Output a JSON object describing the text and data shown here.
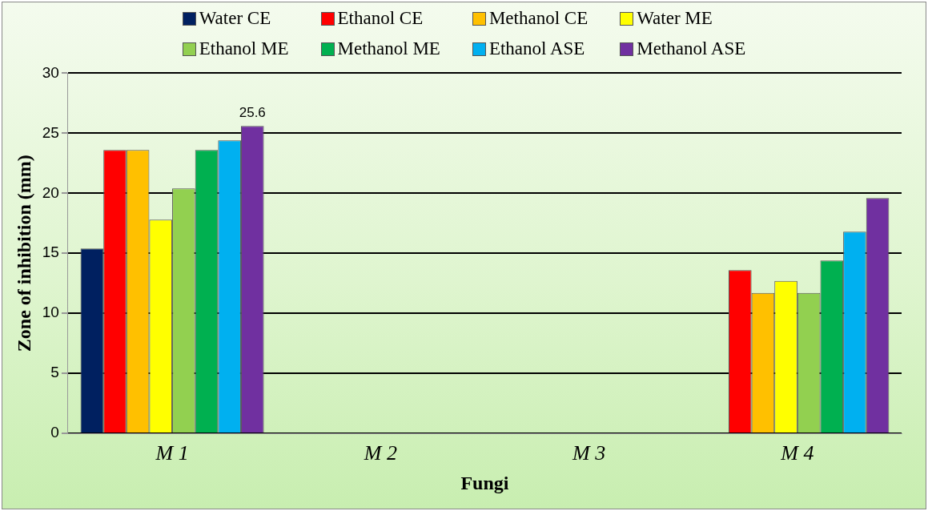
{
  "chart_data": {
    "type": "bar",
    "xlabel": "Fungi",
    "ylabel": "Zone of inhibition (mm)",
    "categories": [
      "M 1",
      "M 2",
      "M 3",
      "M 4"
    ],
    "series": [
      {
        "name": "Water CE",
        "color": "#002060",
        "values": [
          15.4,
          0,
          0,
          0
        ]
      },
      {
        "name": "Ethanol CE",
        "color": "#ff0000",
        "values": [
          23.6,
          0,
          0,
          13.6
        ]
      },
      {
        "name": "Methanol CE",
        "color": "#ffc000",
        "values": [
          23.6,
          0,
          0,
          11.7
        ]
      },
      {
        "name": "Water ME",
        "color": "#ffff00",
        "values": [
          17.8,
          0,
          0,
          12.7
        ]
      },
      {
        "name": "Ethanol ME",
        "color": "#92d050",
        "values": [
          20.4,
          0,
          0,
          11.7
        ]
      },
      {
        "name": "Methanol ME",
        "color": "#00b050",
        "values": [
          23.6,
          0,
          0,
          14.4
        ]
      },
      {
        "name": "Ethanol ASE",
        "color": "#00b0f0",
        "values": [
          24.4,
          0,
          0,
          16.8
        ]
      },
      {
        "name": "Methanol ASE",
        "color": "#7030a0",
        "values": [
          25.6,
          0,
          0,
          19.6
        ],
        "value_labels": [
          "25.6",
          null,
          null,
          null
        ]
      }
    ],
    "ylim": [
      0,
      30
    ],
    "yticks": [
      0,
      5,
      10,
      15,
      20,
      25,
      30
    ],
    "grid": "y",
    "legend": "top"
  }
}
